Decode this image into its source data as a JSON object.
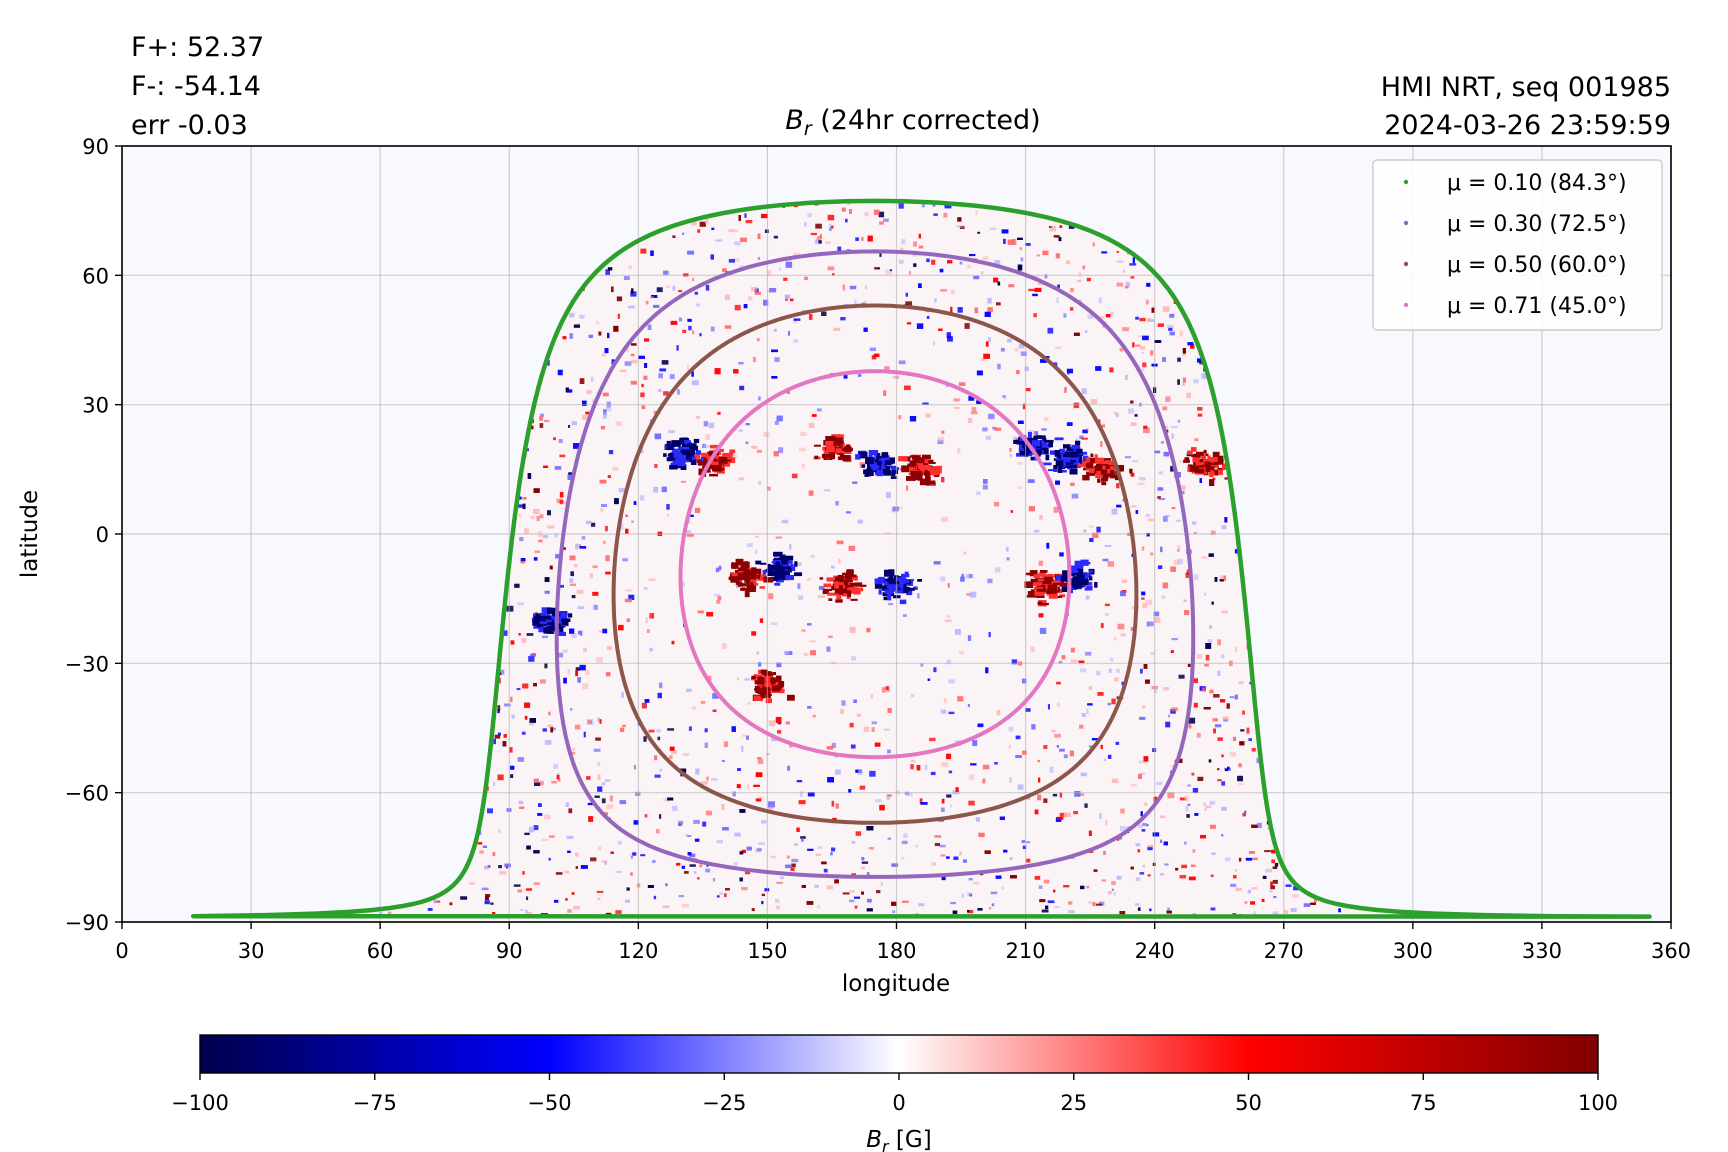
{
  "header": {
    "stats": [
      "F+: 52.37",
      "F-: -54.14",
      "err -0.03"
    ],
    "source": "HMI NRT, seq 001985",
    "timestamp": "2024-03-26 23:59:59"
  },
  "chart_data": {
    "type": "heatmap",
    "title": {
      "base": "B",
      "sub": "r",
      "rest": " (24hr corrected)"
    },
    "xlabel": "longitude",
    "ylabel": "latitude",
    "xlim": [
      0,
      360
    ],
    "ylim": [
      -90,
      90
    ],
    "xticks": [
      0,
      30,
      60,
      90,
      120,
      150,
      180,
      210,
      240,
      270,
      300,
      330,
      360
    ],
    "yticks": [
      90,
      60,
      30,
      0,
      -30,
      -60,
      -90
    ],
    "ytick_labels": [
      "90",
      "60",
      "30",
      "0",
      "−30",
      "−60",
      "−90"
    ],
    "grid": true,
    "legend_placement": "top-right",
    "disk_center": {
      "lon": 175,
      "lat": -7
    },
    "contours": [
      {
        "label": "μ = 0.10 (84.3°)",
        "mu": 0.1,
        "angle_deg": 84.3,
        "color": "#2ca02c"
      },
      {
        "label": "μ = 0.30 (72.5°)",
        "mu": 0.3,
        "angle_deg": 72.5,
        "color": "#9467bd"
      },
      {
        "label": "μ = 0.50 (60.0°)",
        "mu": 0.5,
        "angle_deg": 60.0,
        "color": "#8c564b"
      },
      {
        "label": "μ = 0.71 (45.0°)",
        "mu": 0.71,
        "angle_deg": 45.0,
        "color": "#e377c2"
      }
    ],
    "active_regions": [
      {
        "lon": 138,
        "lat": 17,
        "sign": 1
      },
      {
        "lon": 130,
        "lat": 19,
        "sign": -1
      },
      {
        "lon": 166,
        "lat": 20,
        "sign": 1
      },
      {
        "lon": 176,
        "lat": 16,
        "sign": -1
      },
      {
        "lon": 186,
        "lat": 15,
        "sign": 1
      },
      {
        "lon": 212,
        "lat": 20,
        "sign": -1
      },
      {
        "lon": 220,
        "lat": 18,
        "sign": -1
      },
      {
        "lon": 228,
        "lat": 15,
        "sign": 1
      },
      {
        "lon": 252,
        "lat": 16,
        "sign": 1
      },
      {
        "lon": 215,
        "lat": -12,
        "sign": 1
      },
      {
        "lon": 222,
        "lat": -10,
        "sign": -1
      },
      {
        "lon": 180,
        "lat": -12,
        "sign": -1
      },
      {
        "lon": 168,
        "lat": -12,
        "sign": 1
      },
      {
        "lon": 153,
        "lat": -8,
        "sign": -1
      },
      {
        "lon": 145,
        "lat": -10,
        "sign": 1
      },
      {
        "lon": 150,
        "lat": -35,
        "sign": 1
      },
      {
        "lon": 100,
        "lat": -20,
        "sign": -1
      }
    ],
    "colorbar": {
      "label": {
        "base": "B",
        "sub": "r",
        "rest": " [G]"
      },
      "min": -100,
      "max": 100,
      "ticks": [
        -100,
        -75,
        -50,
        -25,
        0,
        25,
        50,
        75,
        100
      ],
      "tick_labels": [
        "−100",
        "−75",
        "−50",
        "−25",
        "0",
        "25",
        "50",
        "75",
        "100"
      ],
      "colors": [
        "#00004c",
        "#0000ff",
        "#ffffff",
        "#ff0000",
        "#800000"
      ]
    },
    "background_color": "#f8f9fe"
  }
}
